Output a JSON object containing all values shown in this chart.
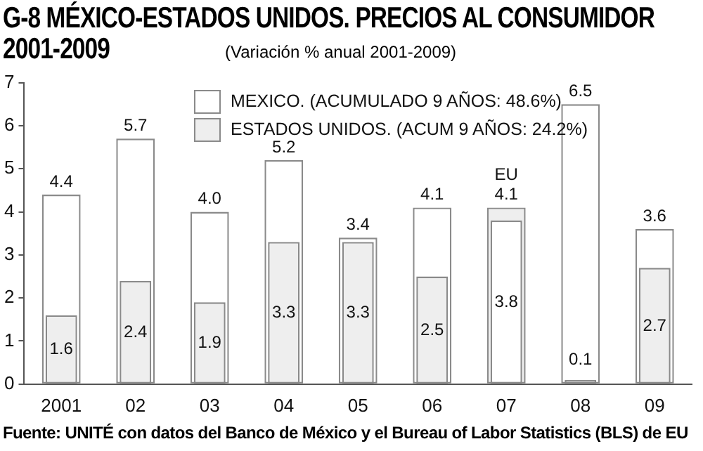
{
  "chart_data": {
    "type": "bar",
    "title": "G-8 MÉXICO-ESTADOS UNIDOS. PRECIOS AL CONSUMIDOR 2001-2009",
    "subtitle": "(Variación % anual 2001-2009)",
    "categories": [
      "2001",
      "02",
      "03",
      "04",
      "05",
      "06",
      "07",
      "08",
      "09"
    ],
    "series": [
      {
        "name": "MEXICO. (ACUMULADO 9 AÑOS: 48.6%)",
        "color": "#ffffff",
        "values": [
          4.4,
          5.7,
          4.0,
          5.2,
          3.4,
          4.1,
          3.8,
          6.5,
          3.6
        ],
        "value_labels": [
          "4.4",
          "5.7",
          "4.0",
          "5.2",
          "3.4",
          "4.1",
          "3.8",
          "6.5",
          "3.6"
        ]
      },
      {
        "name": "ESTADOS UNIDOS. (ACUM 9 AÑOS: 24.2%)",
        "color": "#eeeeee",
        "values": [
          1.6,
          2.4,
          1.9,
          3.3,
          3.3,
          2.5,
          4.1,
          0.1,
          2.7
        ],
        "value_labels": [
          "1.6",
          "2.4",
          "1.9",
          "3.3",
          "3.3",
          "2.5",
          "4.1",
          "0.1",
          "2.7"
        ]
      }
    ],
    "ylim": [
      0,
      7
    ],
    "yticks": [
      0,
      1,
      2,
      3,
      4,
      5,
      6,
      7
    ],
    "grid": false,
    "legend": "top right",
    "annotations": [
      {
        "text": "EU",
        "x": "07",
        "y": 4.1
      },
      "Fuente: UNITÉ con datos del Banco de México y el Bureau of Labor Statistics (BLS) de EU"
    ]
  }
}
